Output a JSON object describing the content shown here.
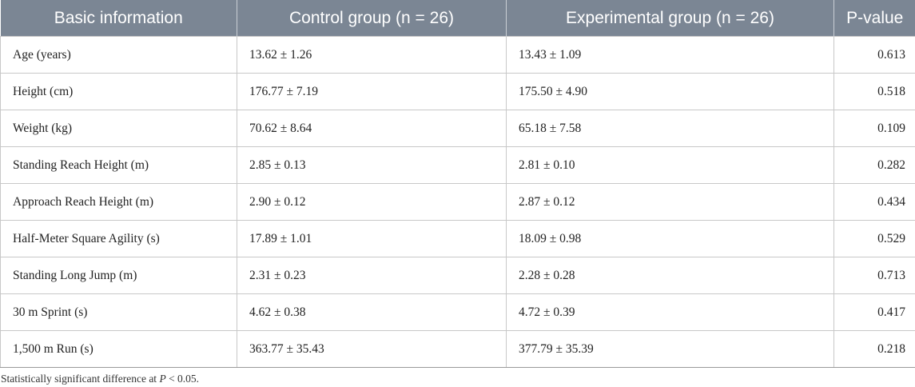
{
  "table": {
    "headers": [
      "Basic information",
      "Control group (n = 26)",
      "Experimental group (n = 26)",
      "P-value"
    ],
    "rows": [
      [
        "Age (years)",
        "13.62 ± 1.26",
        "13.43 ± 1.09",
        "0.613"
      ],
      [
        "Height (cm)",
        "176.77 ± 7.19",
        "175.50 ± 4.90",
        "0.518"
      ],
      [
        "Weight (kg)",
        "70.62 ± 8.64",
        "65.18 ± 7.58",
        "0.109"
      ],
      [
        "Standing Reach Height (m)",
        "2.85 ± 0.13",
        "2.81 ± 0.10",
        "0.282"
      ],
      [
        "Approach Reach Height (m)",
        "2.90 ± 0.12",
        "2.87 ± 0.12",
        "0.434"
      ],
      [
        "Half-Meter Square Agility (s)",
        "17.89 ± 1.01",
        "18.09 ± 0.98",
        "0.529"
      ],
      [
        "Standing Long Jump (m)",
        "2.31 ± 0.23",
        "2.28 ± 0.28",
        "0.713"
      ],
      [
        "30 m Sprint (s)",
        "4.62 ± 0.38",
        "4.72 ± 0.39",
        "0.417"
      ],
      [
        "1,500 m Run (s)",
        "363.77 ± 35.43",
        "377.79 ± 35.39",
        "0.218"
      ]
    ]
  },
  "footnote": {
    "prefix": "Statistically significant difference at ",
    "italic": "P",
    "suffix": " < 0.05."
  },
  "colors": {
    "header_bg": "#7b8694",
    "header_text": "#ffffff",
    "border": "#c8c8c8"
  }
}
